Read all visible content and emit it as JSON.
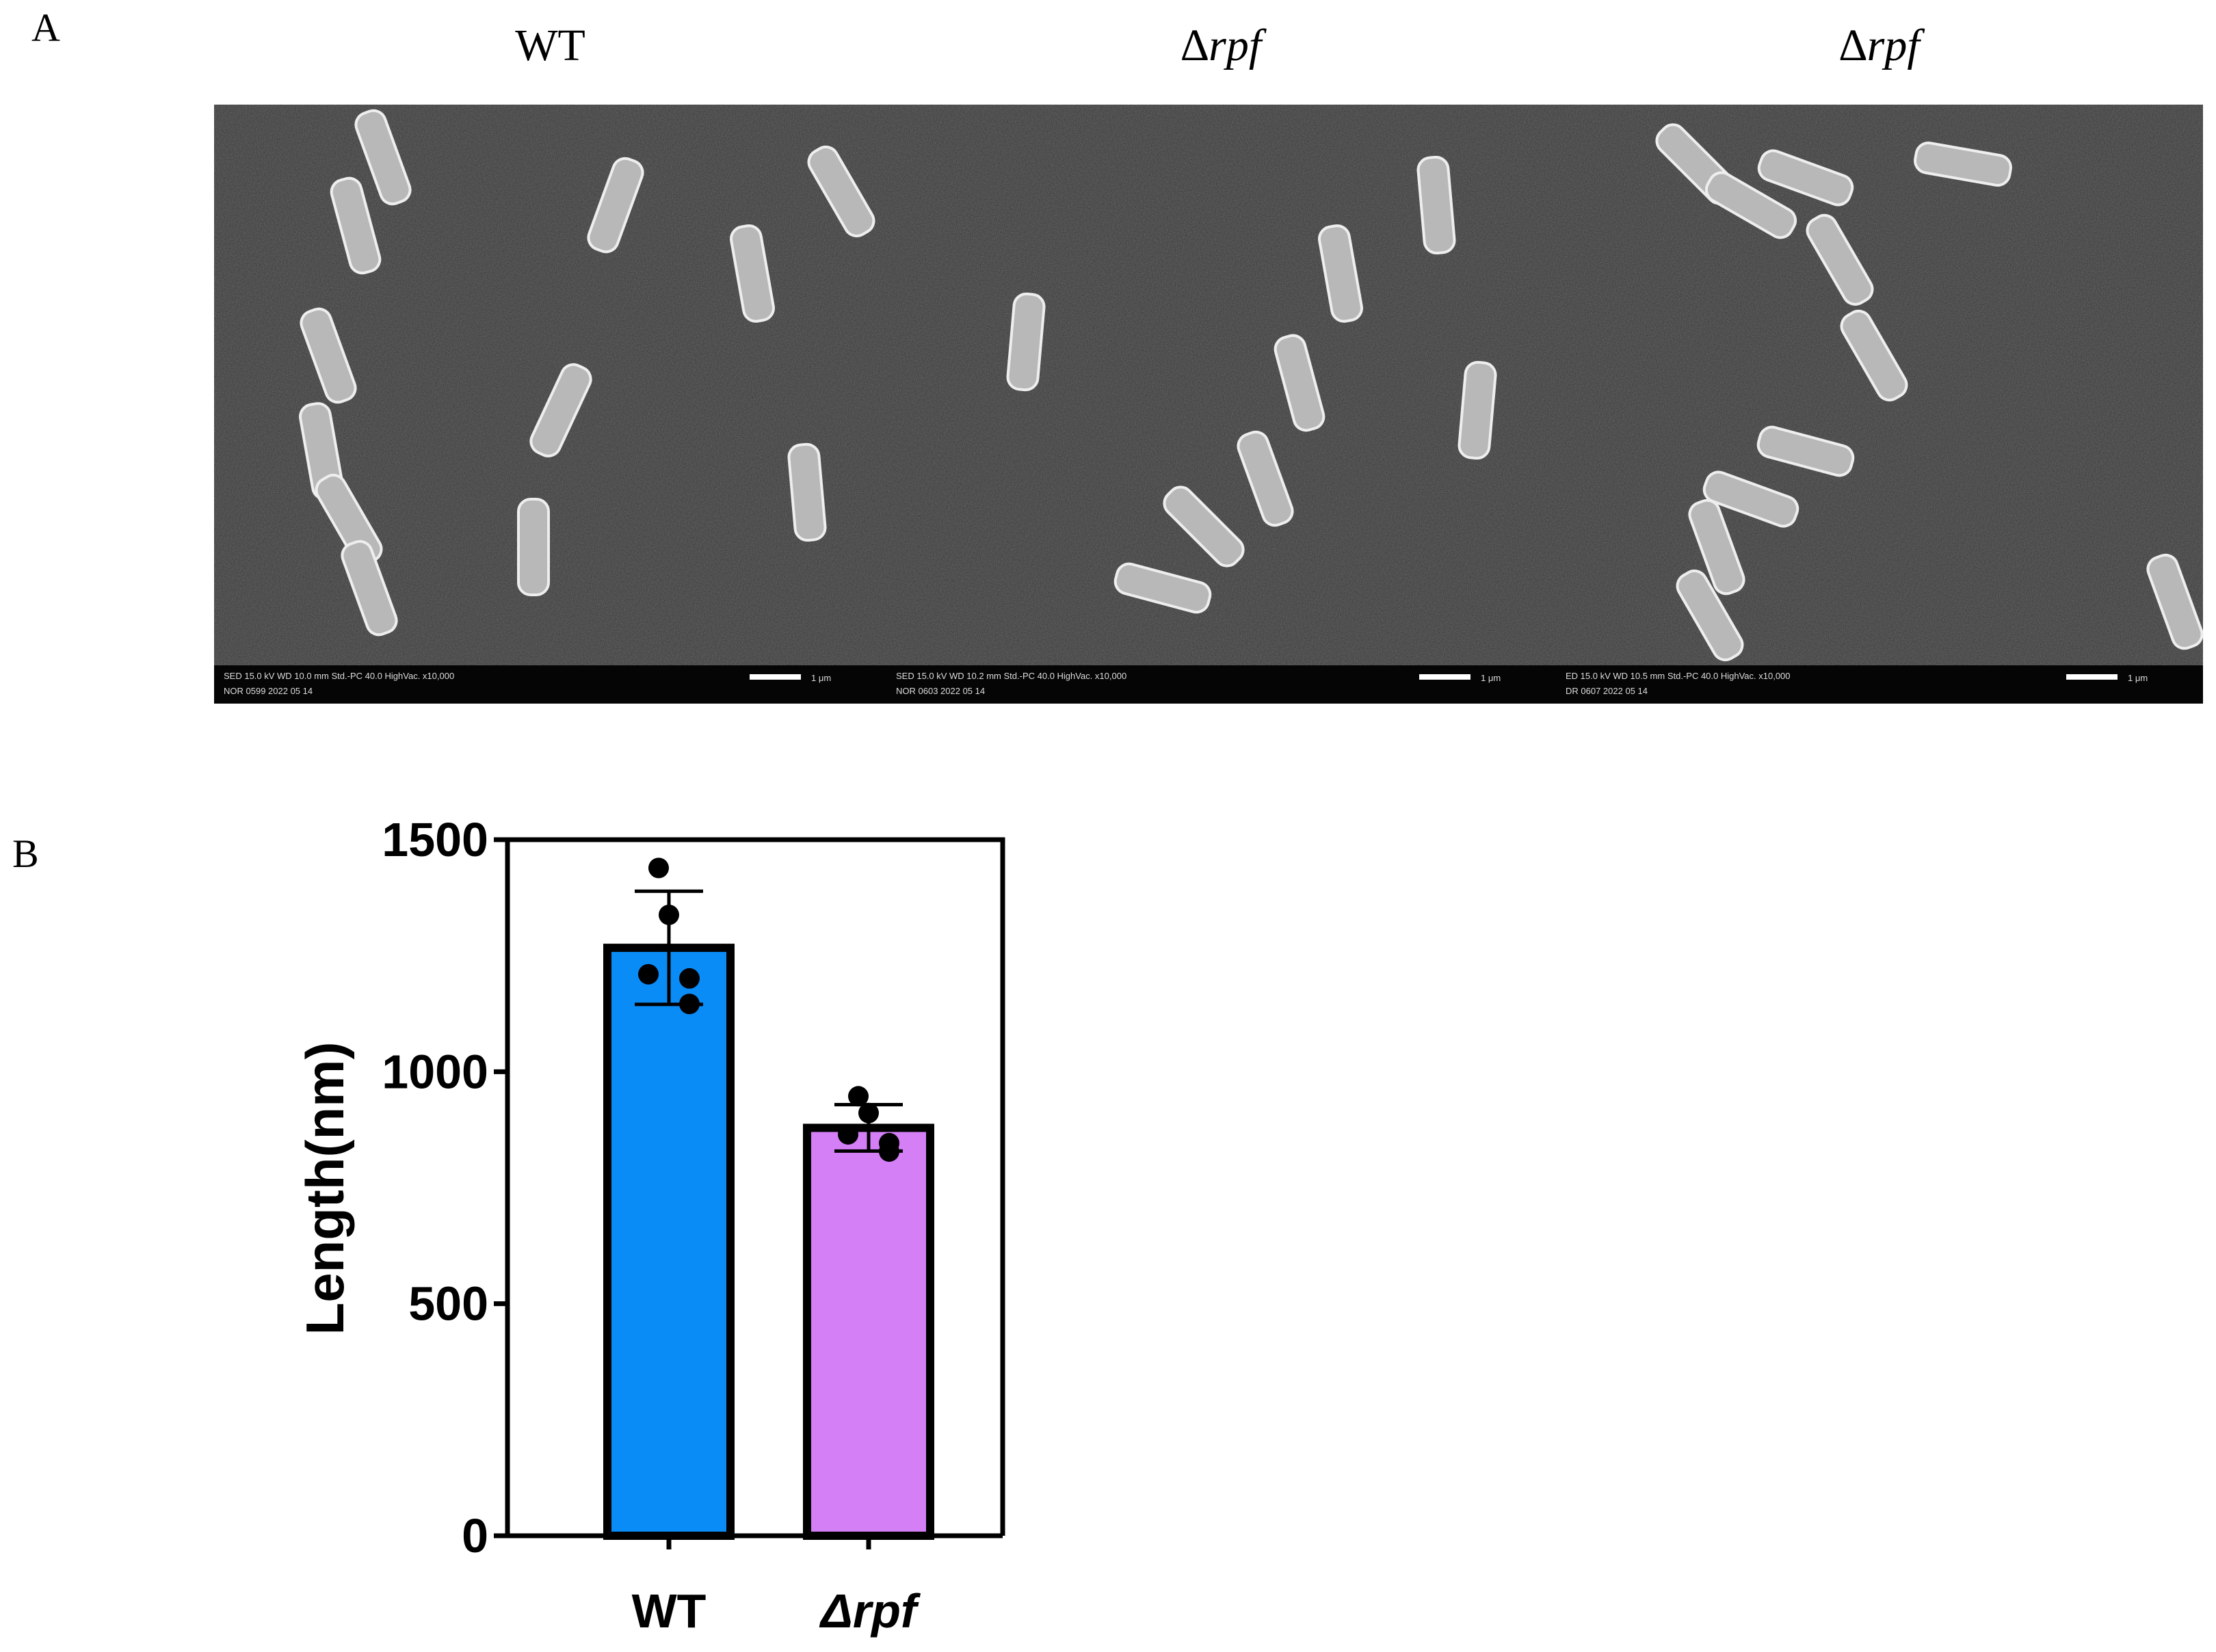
{
  "panel_a": {
    "label": "A",
    "panels": [
      {
        "title": "WT",
        "info": [
          "SED   15.0 kV   WD 10.0 mm   Std.-PC 40.0   HighVac.   x10,000",
          "NOR   0599   2022 05 14"
        ],
        "scale": "1 μm"
      },
      {
        "title": "∆rpf",
        "info": [
          "SED   15.0 kV   WD 10.2 mm   Std.-PC 40.0   HighVac.   x10,000",
          "NOR   0603   2022 05 14"
        ],
        "scale": "1 μm"
      },
      {
        "title": "∆rpf",
        "info": [
          "ED   15.0 kV   WD 10.5 mm   Std.-PC 40.0   HighVac.   x10,000",
          "DR   0607   2022 05 14"
        ],
        "scale": "1 μm"
      }
    ]
  },
  "panel_b": {
    "label": "B"
  },
  "chart_data": {
    "type": "bar",
    "categories": [
      "WT",
      "Δrpf"
    ],
    "values": [
      1267,
      879
    ],
    "errors": [
      122,
      50
    ],
    "points": [
      [
        1439,
        1338,
        1210,
        1201,
        1146
      ],
      [
        947,
        911,
        865,
        828,
        846
      ]
    ],
    "colors": [
      "#0a8cf7",
      "#d57ff7"
    ],
    "ylabel": "Length(nm)",
    "ylim": [
      0,
      1500
    ],
    "yticks": [
      0,
      500,
      1000,
      1500
    ]
  }
}
